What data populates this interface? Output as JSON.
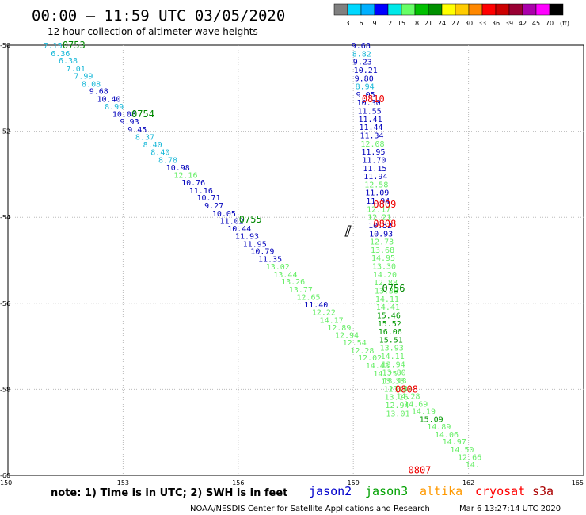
{
  "title": "00:00 – 11:59 UTC 03/05/2020",
  "subtitle": "12 hour collection of altimeter wave heights",
  "note": "note: 1) Time is in UTC; 2) SWH is in feet",
  "credit": "NOAA/NESDIS Center for Satellite Applications and Research",
  "timestamp": "Mar  6 13:27:14 UTC 2020",
  "legend": {
    "satellites": [
      {
        "name": "jason2",
        "color": "#0000cc"
      },
      {
        "name": "jason3",
        "color": "#00a000"
      },
      {
        "name": "altika",
        "color": "#ff9900"
      },
      {
        "name": "cryosat",
        "color": "#ff0000"
      },
      {
        "name": "s3a",
        "color": "#aa0000"
      }
    ]
  },
  "colorbar": {
    "labels": [
      "3",
      "6",
      "9",
      "12",
      "15",
      "18",
      "21",
      "24",
      "27",
      "30",
      "33",
      "36",
      "39",
      "42",
      "45",
      "70"
    ],
    "unit": "(ft)",
    "colors": [
      "#808080",
      "#00d8ff",
      "#00b0ff",
      "#0000ff",
      "#00e8e8",
      "#66ff66",
      "#00c000",
      "#009000",
      "#ffff00",
      "#ffcc00",
      "#ff8800",
      "#ff0000",
      "#cc0000",
      "#990033",
      "#aa00aa",
      "#ff00ff",
      "#000000"
    ]
  },
  "chart_data": {
    "type": "scatter",
    "xlim": [
      150,
      165
    ],
    "ylim": [
      -60,
      -50
    ],
    "x_ticks": [
      "150",
      "153",
      "156",
      "159",
      "162",
      "165"
    ],
    "y_ticks": [
      "-50",
      "-52",
      "-54",
      "-56",
      "-58",
      "-60"
    ],
    "grid": true,
    "track_colors": {
      "cyan": "#1ab8d8",
      "blue": "#0000bb",
      "lgreen": "#66ee66",
      "dgreen": "#009900"
    },
    "tracks": [
      {
        "name": "descending",
        "points": [
          {
            "x": 150.92,
            "y": -50.0,
            "v": "7.15",
            "c": "cyan"
          },
          {
            "x": 151.12,
            "y": -50.18,
            "v": "6.36",
            "c": "cyan"
          },
          {
            "x": 151.32,
            "y": -50.35,
            "v": "6.38",
            "c": "cyan"
          },
          {
            "x": 151.52,
            "y": -50.53,
            "v": "7.01",
            "c": "cyan"
          },
          {
            "x": 151.72,
            "y": -50.71,
            "v": "7.99",
            "c": "cyan"
          },
          {
            "x": 151.92,
            "y": -50.89,
            "v": "8.08",
            "c": "cyan"
          },
          {
            "x": 152.12,
            "y": -51.06,
            "v": "9.68",
            "c": "blue"
          },
          {
            "x": 152.32,
            "y": -51.24,
            "v": "10.40",
            "c": "blue"
          },
          {
            "x": 152.52,
            "y": -51.42,
            "v": "8.99",
            "c": "cyan"
          },
          {
            "x": 152.72,
            "y": -51.59,
            "v": "10.08",
            "c": "blue"
          },
          {
            "x": 152.92,
            "y": -51.77,
            "v": "9.93",
            "c": "blue"
          },
          {
            "x": 153.12,
            "y": -51.95,
            "v": "9.45",
            "c": "blue"
          },
          {
            "x": 153.32,
            "y": -52.13,
            "v": "8.37",
            "c": "cyan"
          },
          {
            "x": 153.52,
            "y": -52.3,
            "v": "8.40",
            "c": "cyan"
          },
          {
            "x": 153.72,
            "y": -52.48,
            "v": "8.40",
            "c": "cyan"
          },
          {
            "x": 153.92,
            "y": -52.66,
            "v": "8.78",
            "c": "cyan"
          },
          {
            "x": 154.12,
            "y": -52.84,
            "v": "10.98",
            "c": "blue"
          },
          {
            "x": 154.32,
            "y": -53.01,
            "v": "12.16",
            "c": "lgreen"
          },
          {
            "x": 154.52,
            "y": -53.19,
            "v": "10.76",
            "c": "blue"
          },
          {
            "x": 154.72,
            "y": -53.37,
            "v": "11.16",
            "c": "blue"
          },
          {
            "x": 154.92,
            "y": -53.54,
            "v": "10.71",
            "c": "blue"
          },
          {
            "x": 155.12,
            "y": -53.72,
            "v": "9.27",
            "c": "blue"
          },
          {
            "x": 155.32,
            "y": -53.9,
            "v": "10.05",
            "c": "blue"
          },
          {
            "x": 155.52,
            "y": -54.08,
            "v": "11.02",
            "c": "blue"
          },
          {
            "x": 155.72,
            "y": -54.25,
            "v": "10.44",
            "c": "blue"
          },
          {
            "x": 155.92,
            "y": -54.43,
            "v": "11.93",
            "c": "blue"
          },
          {
            "x": 156.12,
            "y": -54.61,
            "v": "11.95",
            "c": "blue"
          },
          {
            "x": 156.32,
            "y": -54.78,
            "v": "10.79",
            "c": "blue"
          },
          {
            "x": 156.52,
            "y": -54.96,
            "v": "11.35",
            "c": "blue"
          },
          {
            "x": 156.72,
            "y": -55.14,
            "v": "13.02",
            "c": "lgreen"
          },
          {
            "x": 156.92,
            "y": -55.32,
            "v": "13.44",
            "c": "lgreen"
          },
          {
            "x": 157.12,
            "y": -55.49,
            "v": "13.26",
            "c": "lgreen"
          },
          {
            "x": 157.32,
            "y": -55.67,
            "v": "13.77",
            "c": "lgreen"
          },
          {
            "x": 157.52,
            "y": -55.85,
            "v": "12.65",
            "c": "lgreen"
          },
          {
            "x": 157.72,
            "y": -56.02,
            "v": "11.40",
            "c": "blue"
          },
          {
            "x": 157.92,
            "y": -56.2,
            "v": "12.22",
            "c": "lgreen"
          },
          {
            "x": 158.12,
            "y": -56.38,
            "v": "14.17",
            "c": "lgreen"
          },
          {
            "x": 158.32,
            "y": -56.56,
            "v": "12.89",
            "c": "lgreen"
          },
          {
            "x": 158.52,
            "y": -56.73,
            "v": "12.94",
            "c": "lgreen"
          },
          {
            "x": 158.72,
            "y": -56.91,
            "v": "12.54",
            "c": "lgreen"
          },
          {
            "x": 158.92,
            "y": -57.09,
            "v": "12.28",
            "c": "lgreen"
          },
          {
            "x": 159.12,
            "y": -57.26,
            "v": "12.02",
            "c": "lgreen"
          },
          {
            "x": 159.32,
            "y": -57.44,
            "v": "14.43",
            "c": "lgreen"
          },
          {
            "x": 159.52,
            "y": -57.62,
            "v": "14.25",
            "c": "lgreen"
          },
          {
            "x": 159.72,
            "y": -57.8,
            "v": "13.33",
            "c": "lgreen"
          },
          {
            "x": 159.92,
            "y": -57.97,
            "v": "13.82",
            "c": "lgreen"
          },
          {
            "x": 160.12,
            "y": -58.15,
            "v": "14.28",
            "c": "lgreen"
          },
          {
            "x": 160.32,
            "y": -58.33,
            "v": "14.69",
            "c": "lgreen"
          },
          {
            "x": 160.52,
            "y": -58.5,
            "v": "14.19",
            "c": "lgreen"
          },
          {
            "x": 160.72,
            "y": -58.68,
            "v": "15.09",
            "c": "dgreen"
          },
          {
            "x": 160.92,
            "y": -58.86,
            "v": "14.89",
            "c": "lgreen"
          },
          {
            "x": 161.12,
            "y": -59.04,
            "v": "14.06",
            "c": "lgreen"
          },
          {
            "x": 161.32,
            "y": -59.21,
            "v": "14.97",
            "c": "lgreen"
          },
          {
            "x": 161.52,
            "y": -59.39,
            "v": "14.50",
            "c": "lgreen"
          },
          {
            "x": 161.72,
            "y": -59.57,
            "v": "12.66",
            "c": "lgreen"
          },
          {
            "x": 161.92,
            "y": -59.74,
            "v": "14.",
            "c": "lgreen"
          }
        ]
      },
      {
        "name": "ascending",
        "points": [
          {
            "x": 158.95,
            "y": -50.0,
            "v": "9.68",
            "c": "blue"
          },
          {
            "x": 158.97,
            "y": -50.19,
            "v": "8.82",
            "c": "cyan"
          },
          {
            "x": 158.99,
            "y": -50.38,
            "v": "9.23",
            "c": "blue"
          },
          {
            "x": 159.01,
            "y": -50.57,
            "v": "10.21",
            "c": "blue"
          },
          {
            "x": 159.03,
            "y": -50.76,
            "v": "9.80",
            "c": "blue"
          },
          {
            "x": 159.05,
            "y": -50.95,
            "v": "8.94",
            "c": "cyan"
          },
          {
            "x": 159.07,
            "y": -51.14,
            "v": "9.05",
            "c": "blue"
          },
          {
            "x": 159.09,
            "y": -51.33,
            "v": "10.30",
            "c": "blue"
          },
          {
            "x": 159.11,
            "y": -51.52,
            "v": "11.55",
            "c": "blue"
          },
          {
            "x": 159.13,
            "y": -51.71,
            "v": "11.41",
            "c": "blue"
          },
          {
            "x": 159.15,
            "y": -51.9,
            "v": "11.44",
            "c": "blue"
          },
          {
            "x": 159.17,
            "y": -52.09,
            "v": "11.34",
            "c": "blue"
          },
          {
            "x": 159.19,
            "y": -52.28,
            "v": "12.08",
            "c": "lgreen"
          },
          {
            "x": 159.21,
            "y": -52.47,
            "v": "11.95",
            "c": "blue"
          },
          {
            "x": 159.23,
            "y": -52.66,
            "v": "11.70",
            "c": "blue"
          },
          {
            "x": 159.25,
            "y": -52.85,
            "v": "11.15",
            "c": "blue"
          },
          {
            "x": 159.27,
            "y": -53.04,
            "v": "11.94",
            "c": "blue"
          },
          {
            "x": 159.29,
            "y": -53.23,
            "v": "12.58",
            "c": "lgreen"
          },
          {
            "x": 159.31,
            "y": -53.42,
            "v": "11.09",
            "c": "blue"
          },
          {
            "x": 159.33,
            "y": -53.61,
            "v": "11.94",
            "c": "blue"
          },
          {
            "x": 159.35,
            "y": -53.8,
            "v": "12.17",
            "c": "lgreen"
          },
          {
            "x": 159.37,
            "y": -53.99,
            "v": "12.21",
            "c": "lgreen"
          },
          {
            "x": 159.39,
            "y": -54.18,
            "v": "10.52",
            "c": "blue"
          },
          {
            "x": 159.41,
            "y": -54.37,
            "v": "10.93",
            "c": "blue"
          },
          {
            "x": 159.43,
            "y": -54.56,
            "v": "12.73",
            "c": "lgreen"
          },
          {
            "x": 159.45,
            "y": -54.75,
            "v": "13.68",
            "c": "lgreen"
          },
          {
            "x": 159.47,
            "y": -54.94,
            "v": "14.95",
            "c": "lgreen"
          },
          {
            "x": 159.49,
            "y": -55.13,
            "v": "13.30",
            "c": "lgreen"
          },
          {
            "x": 159.51,
            "y": -55.32,
            "v": "14.20",
            "c": "lgreen"
          },
          {
            "x": 159.53,
            "y": -55.51,
            "v": "12.88",
            "c": "lgreen"
          },
          {
            "x": 159.55,
            "y": -55.7,
            "v": "13.38",
            "c": "lgreen"
          },
          {
            "x": 159.57,
            "y": -55.89,
            "v": "14.11",
            "c": "lgreen"
          },
          {
            "x": 159.59,
            "y": -56.08,
            "v": "14.41",
            "c": "lgreen"
          },
          {
            "x": 159.61,
            "y": -56.27,
            "v": "15.46",
            "c": "dgreen"
          },
          {
            "x": 159.63,
            "y": -56.46,
            "v": "15.52",
            "c": "dgreen"
          },
          {
            "x": 159.65,
            "y": -56.65,
            "v": "16.06",
            "c": "dgreen"
          },
          {
            "x": 159.67,
            "y": -56.84,
            "v": "15.51",
            "c": "dgreen"
          },
          {
            "x": 159.69,
            "y": -57.03,
            "v": "13.93",
            "c": "lgreen"
          },
          {
            "x": 159.71,
            "y": -57.22,
            "v": "14.11",
            "c": "lgreen"
          },
          {
            "x": 159.73,
            "y": -57.41,
            "v": "13.94",
            "c": "lgreen"
          },
          {
            "x": 159.75,
            "y": -57.6,
            "v": "13.80",
            "c": "lgreen"
          },
          {
            "x": 159.77,
            "y": -57.79,
            "v": "13.13",
            "c": "lgreen"
          },
          {
            "x": 159.79,
            "y": -57.98,
            "v": "12.13",
            "c": "lgreen"
          },
          {
            "x": 159.81,
            "y": -58.17,
            "v": "13.16",
            "c": "lgreen"
          },
          {
            "x": 159.83,
            "y": -58.36,
            "v": "12.94",
            "c": "lgreen"
          },
          {
            "x": 159.85,
            "y": -58.55,
            "v": "13.01",
            "c": "lgreen"
          }
        ]
      }
    ],
    "time_labels": [
      {
        "x": 151.42,
        "y": -50.0,
        "text": "0753",
        "color": "#008800"
      },
      {
        "x": 153.22,
        "y": -51.6,
        "text": "0754",
        "color": "#008800"
      },
      {
        "x": 156.02,
        "y": -54.05,
        "text": "0755",
        "color": "#008800"
      },
      {
        "x": 159.75,
        "y": -55.65,
        "text": "0756",
        "color": "#008800"
      },
      {
        "x": 159.22,
        "y": -51.25,
        "text": "0810",
        "color": "#ee0000"
      },
      {
        "x": 159.52,
        "y": -53.7,
        "text": "0809",
        "color": "#ee0000"
      },
      {
        "x": 159.52,
        "y": -54.15,
        "text": "0808",
        "color": "#ee0000"
      },
      {
        "x": 160.09,
        "y": -58.0,
        "text": "0808",
        "color": "#ee0000"
      },
      {
        "x": 160.43,
        "y": -59.88,
        "text": "0807",
        "color": "#ee0000"
      }
    ]
  }
}
